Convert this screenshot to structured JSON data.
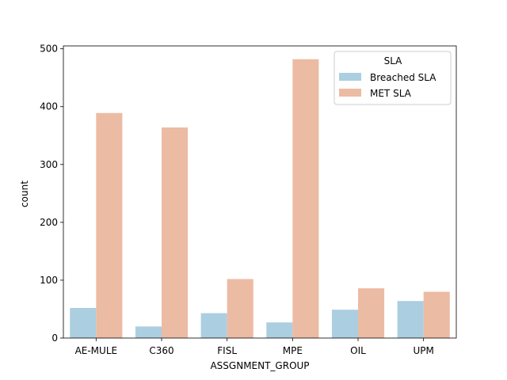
{
  "chart_data": {
    "type": "bar",
    "xlabel": "ASSGNMENT_GROUP",
    "ylabel": "count",
    "categories": [
      "AE-MULE",
      "C360",
      "FISL",
      "MPE",
      "OIL",
      "UPM"
    ],
    "ylim": [
      0,
      505
    ],
    "yticks": [
      0,
      100,
      200,
      300,
      400,
      500
    ],
    "grid": false,
    "legend": {
      "title": "SLA",
      "position": "top-right"
    },
    "series": [
      {
        "name": "Breached SLA",
        "color": "#abcfe0",
        "values": [
          52,
          20,
          43,
          27,
          49,
          64
        ]
      },
      {
        "name": "MET SLA",
        "color": "#ecbba3",
        "values": [
          389,
          364,
          102,
          482,
          86,
          80
        ]
      }
    ]
  }
}
